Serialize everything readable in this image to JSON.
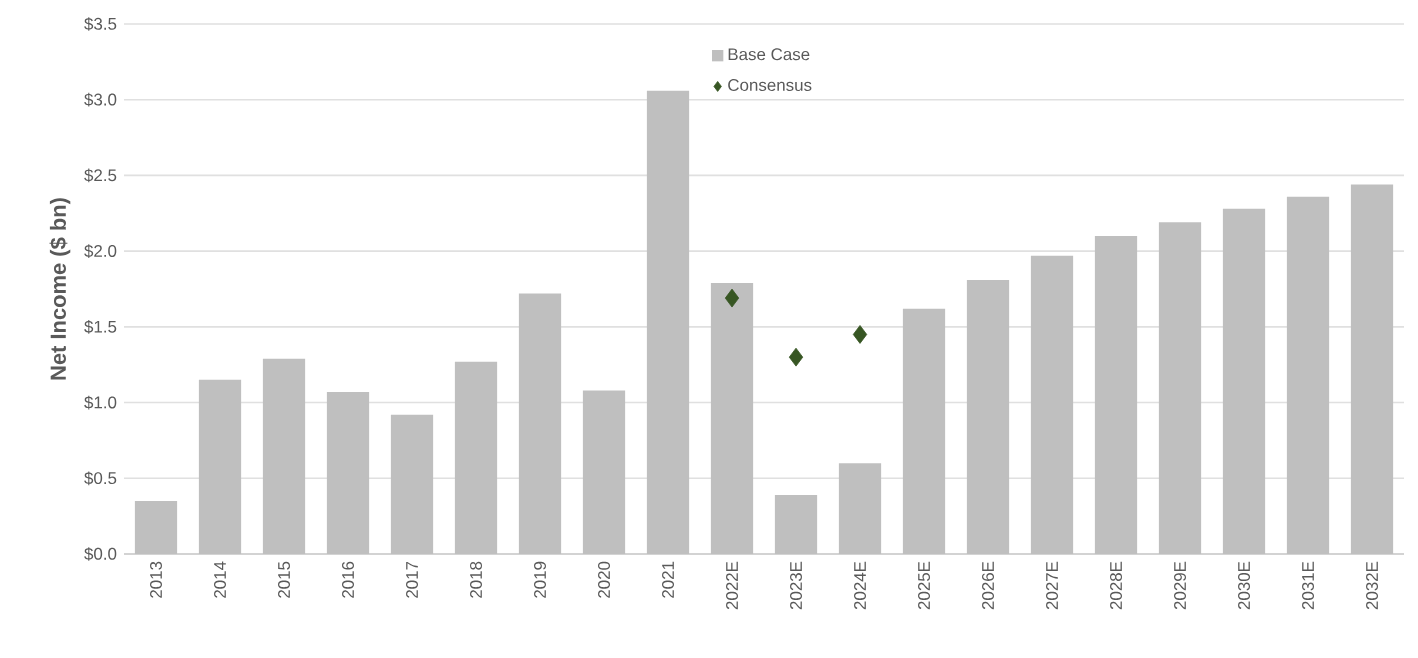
{
  "chart_data": {
    "type": "bar",
    "ylabel": "Net Income ($ bn)",
    "categories": [
      "2013",
      "2014",
      "2015",
      "2016",
      "2017",
      "2018",
      "2019",
      "2020",
      "2021",
      "2022E",
      "2023E",
      "2024E",
      "2025E",
      "2026E",
      "2027E",
      "2028E",
      "2029E",
      "2030E",
      "2031E",
      "2032E"
    ],
    "series": [
      {
        "name": "Base Case",
        "color": "#bfbfbf",
        "values": [
          0.35,
          1.15,
          1.29,
          1.07,
          0.92,
          1.27,
          1.72,
          1.08,
          3.06,
          1.79,
          0.39,
          0.6,
          1.62,
          1.81,
          1.97,
          2.1,
          2.19,
          2.28,
          2.36,
          2.44
        ]
      },
      {
        "name": "Consensus",
        "type": "scatter",
        "color": "#375623",
        "marker": "diamond",
        "x": [
          "2022E",
          "2023E",
          "2024E"
        ],
        "values": [
          1.69,
          1.3,
          1.45
        ]
      }
    ],
    "ylim": [
      0,
      3.5
    ],
    "yticks": [
      {
        "value": 0,
        "label": "$0.0"
      },
      {
        "value": 0.5,
        "label": "$0.5"
      },
      {
        "value": 1,
        "label": "$1.0"
      },
      {
        "value": 1.5,
        "label": "$1.5"
      },
      {
        "value": 2,
        "label": "$2.0"
      },
      {
        "value": 2.5,
        "label": "$2.5"
      },
      {
        "value": 3,
        "label": "$3.0"
      },
      {
        "value": 3.5,
        "label": "$3.5"
      }
    ],
    "grid": "y",
    "legend": "top"
  }
}
